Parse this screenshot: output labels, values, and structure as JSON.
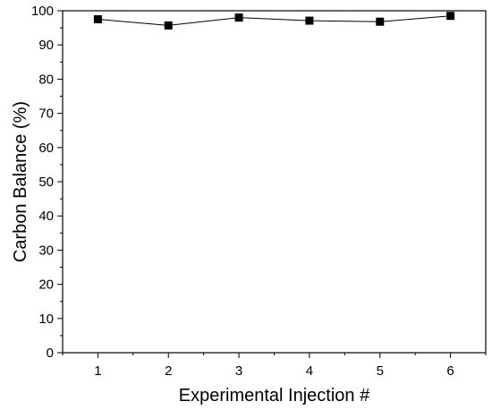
{
  "chart_data": {
    "type": "line",
    "title": "",
    "xlabel": "Experimental Injection #",
    "ylabel": "Carbon Balance (%)",
    "x": [
      1,
      2,
      3,
      4,
      5,
      6
    ],
    "series": [
      {
        "values": [
          97.5,
          95.7,
          98.0,
          97.1,
          96.8,
          98.5
        ]
      }
    ],
    "xlim": [
      0.5,
      6.5
    ],
    "ylim": [
      0,
      100
    ],
    "xticks": [
      "1",
      "2",
      "3",
      "4",
      "5",
      "6"
    ],
    "yticks": [
      "0",
      "10",
      "20",
      "30",
      "40",
      "50",
      "60",
      "70",
      "80",
      "90",
      "100"
    ],
    "marker": "square",
    "grid": false,
    "legend": "none",
    "colors": {
      "line": "#000000",
      "marker": "#000000",
      "axis": "#000000"
    }
  }
}
